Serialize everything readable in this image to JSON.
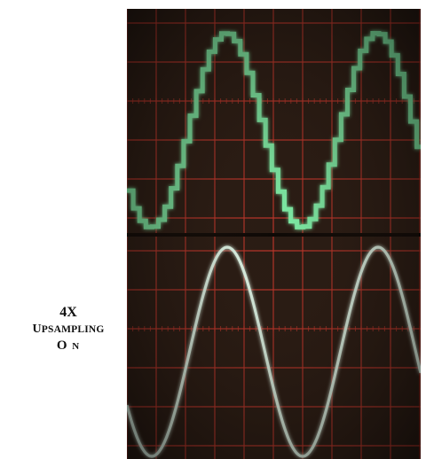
{
  "caption": {
    "line1": "4X",
    "line2_first": "U",
    "line2_rest": "PSAMPLING",
    "line3_first": "O",
    "line3_rest": "N"
  },
  "scope": {
    "grid_color": "#c2372c",
    "trace_color_top": "#7ff0a8",
    "trace_color_bottom": "#e6fff0",
    "top_trace": "stepped sine wave",
    "bottom_trace": "smooth sine wave",
    "cycles_visible": 2
  }
}
